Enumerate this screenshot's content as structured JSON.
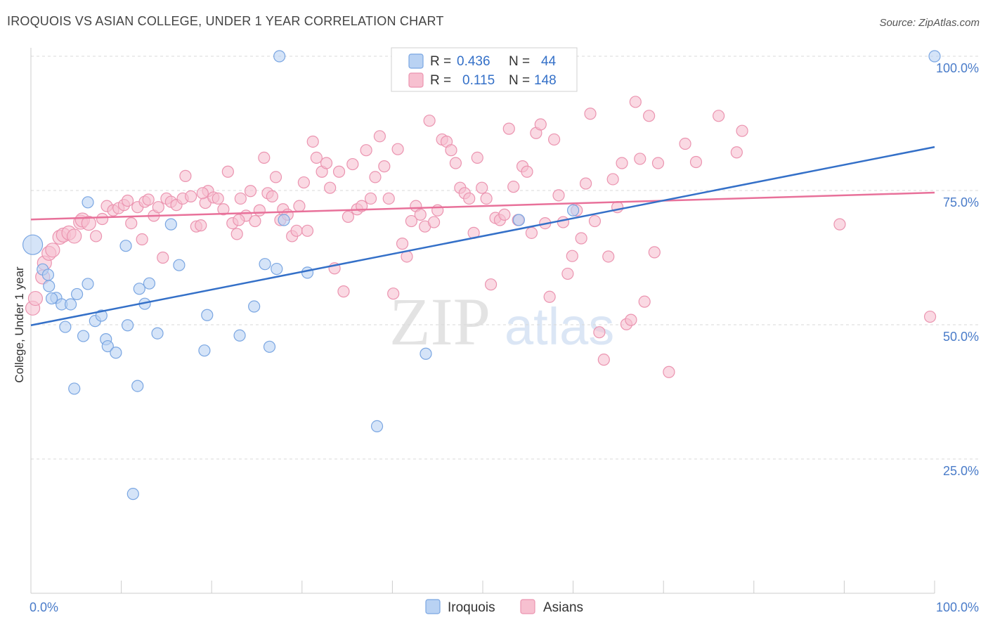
{
  "title": "IROQUOIS VS ASIAN COLLEGE, UNDER 1 YEAR CORRELATION CHART",
  "source": "Source: ZipAtlas.com",
  "watermark": {
    "zip": "ZIP",
    "atlas": "atlas"
  },
  "colors": {
    "iroquois_fill": "#b9d2f3",
    "iroquois_stroke": "#7aa6e2",
    "iroquois_line": "#3470c8",
    "asians_fill": "#f7c0d0",
    "asians_stroke": "#eb94b0",
    "asians_line": "#e8719a",
    "grid": "#d9d9d9",
    "tick_text": "#4a7cc9"
  },
  "legend": {
    "rows": [
      {
        "r_label": "R =",
        "r_value": "0.436",
        "n_label": "N =",
        "n_value": "44"
      },
      {
        "r_label": "R =",
        "r_value": "0.115",
        "n_label": "N =",
        "n_value": "148"
      }
    ]
  },
  "bottom_legend": {
    "iroquois": "Iroquois",
    "asians": "Asians"
  },
  "chart_data": {
    "type": "scatter",
    "title": "IROQUOIS VS ASIAN COLLEGE, UNDER 1 YEAR CORRELATION CHART",
    "xlabel": "",
    "ylabel": "College, Under 1 year",
    "xlim": [
      0,
      100
    ],
    "ylim": [
      0,
      100
    ],
    "x_tick_labels": [
      "0.0%",
      "100.0%"
    ],
    "y_tick_labels": [
      {
        "value": 25,
        "label": "25.0%"
      },
      {
        "value": 50,
        "label": "50.0%"
      },
      {
        "value": 75,
        "label": "75.0%"
      },
      {
        "value": 100,
        "label": "100.0%"
      }
    ],
    "grid": true,
    "series": [
      {
        "name": "Iroquois",
        "R": 0.436,
        "N": 44,
        "trend": {
          "x": [
            0,
            100
          ],
          "y": [
            49.9,
            83.1
          ]
        },
        "points": [
          [
            0.2,
            64.9,
            14
          ],
          [
            1.3,
            60.3,
            8
          ],
          [
            2.0,
            57.2,
            8
          ],
          [
            1.9,
            59.3,
            8
          ],
          [
            2.8,
            55.0,
            8
          ],
          [
            3.4,
            53.8,
            8
          ],
          [
            4.4,
            53.8,
            8
          ],
          [
            3.8,
            49.6,
            8
          ],
          [
            5.1,
            55.7,
            8
          ],
          [
            5.8,
            47.9,
            8
          ],
          [
            6.3,
            57.6,
            8
          ],
          [
            7.1,
            50.7,
            8
          ],
          [
            7.8,
            51.7,
            8
          ],
          [
            8.3,
            47.3,
            8
          ],
          [
            8.5,
            46.0,
            8
          ],
          [
            9.4,
            44.8,
            8
          ],
          [
            10.5,
            64.7,
            8
          ],
          [
            10.7,
            49.9,
            8
          ],
          [
            11.8,
            38.6,
            8
          ],
          [
            12.0,
            56.7,
            8
          ],
          [
            12.6,
            53.9,
            8
          ],
          [
            13.1,
            57.7,
            8
          ],
          [
            14.0,
            48.4,
            8
          ],
          [
            15.5,
            68.7,
            8
          ],
          [
            16.4,
            61.1,
            8
          ],
          [
            19.2,
            45.2,
            8
          ],
          [
            19.5,
            51.8,
            8
          ],
          [
            23.1,
            48.0,
            8
          ],
          [
            24.7,
            53.4,
            8
          ],
          [
            25.9,
            61.3,
            8
          ],
          [
            26.4,
            45.9,
            8
          ],
          [
            27.2,
            60.4,
            8
          ],
          [
            28.0,
            69.5,
            8
          ],
          [
            30.6,
            59.7,
            8
          ],
          [
            38.3,
            31.1,
            8
          ],
          [
            43.7,
            44.6,
            8
          ],
          [
            54.0,
            69.5,
            8
          ],
          [
            60.0,
            71.3,
            8
          ],
          [
            6.3,
            72.8,
            8
          ],
          [
            4.8,
            38.1,
            8
          ],
          [
            11.3,
            18.5,
            8
          ],
          [
            27.5,
            100.0,
            8
          ],
          [
            100.0,
            100.0,
            8
          ],
          [
            2.3,
            54.9,
            8
          ]
        ]
      },
      {
        "name": "Asians",
        "R": 0.115,
        "N": 148,
        "trend": {
          "x": [
            0,
            100
          ],
          "y": [
            69.6,
            74.6
          ]
        },
        "points": [
          [
            0.2,
            53.1,
            10
          ],
          [
            0.5,
            54.9,
            10
          ],
          [
            1.3,
            58.9,
            10
          ],
          [
            1.5,
            61.5,
            10
          ],
          [
            2.0,
            63.3,
            10
          ],
          [
            2.4,
            63.9,
            10
          ],
          [
            3.2,
            66.3,
            10
          ],
          [
            3.6,
            66.7,
            10
          ],
          [
            4.2,
            67.1,
            10
          ],
          [
            4.8,
            66.5,
            10
          ],
          [
            5.5,
            69.1,
            10
          ],
          [
            5.7,
            69.5,
            10
          ],
          [
            6.4,
            68.9,
            10
          ],
          [
            7.2,
            66.5,
            8
          ],
          [
            7.9,
            69.7,
            8
          ],
          [
            8.4,
            72.1,
            8
          ],
          [
            9.1,
            71.3,
            8
          ],
          [
            9.7,
            71.7,
            8
          ],
          [
            10.3,
            72.3,
            8
          ],
          [
            10.7,
            73.1,
            8
          ],
          [
            11.1,
            68.9,
            8
          ],
          [
            11.8,
            71.9,
            8
          ],
          [
            12.3,
            65.9,
            8
          ],
          [
            12.6,
            72.9,
            8
          ],
          [
            13.0,
            73.3,
            8
          ],
          [
            13.6,
            70.3,
            8
          ],
          [
            14.1,
            71.9,
            8
          ],
          [
            14.6,
            62.5,
            8
          ],
          [
            15.0,
            73.5,
            8
          ],
          [
            15.5,
            72.9,
            8
          ],
          [
            16.1,
            72.3,
            8
          ],
          [
            16.8,
            73.5,
            8
          ],
          [
            17.1,
            77.7,
            8
          ],
          [
            17.7,
            73.9,
            8
          ],
          [
            18.3,
            68.3,
            8
          ],
          [
            18.8,
            68.5,
            8
          ],
          [
            19.3,
            72.7,
            8
          ],
          [
            19.6,
            74.9,
            8
          ],
          [
            20.2,
            73.7,
            8
          ],
          [
            20.7,
            73.5,
            8
          ],
          [
            21.3,
            71.5,
            8
          ],
          [
            21.8,
            78.5,
            8
          ],
          [
            22.3,
            68.9,
            8
          ],
          [
            22.8,
            66.9,
            8
          ],
          [
            23.2,
            73.5,
            8
          ],
          [
            23.8,
            70.3,
            8
          ],
          [
            24.3,
            74.9,
            8
          ],
          [
            24.8,
            69.3,
            8
          ],
          [
            25.3,
            71.3,
            8
          ],
          [
            25.8,
            81.1,
            8
          ],
          [
            26.2,
            74.5,
            8
          ],
          [
            26.7,
            73.9,
            8
          ],
          [
            27.1,
            77.5,
            8
          ],
          [
            27.6,
            69.5,
            8
          ],
          [
            27.9,
            71.5,
            8
          ],
          [
            28.4,
            70.5,
            8
          ],
          [
            28.9,
            66.5,
            8
          ],
          [
            29.4,
            67.5,
            8
          ],
          [
            29.7,
            72.1,
            8
          ],
          [
            30.2,
            76.5,
            8
          ],
          [
            30.6,
            67.5,
            8
          ],
          [
            31.2,
            84.1,
            8
          ],
          [
            31.6,
            81.1,
            8
          ],
          [
            32.2,
            78.5,
            8
          ],
          [
            32.7,
            80.1,
            8
          ],
          [
            33.1,
            75.5,
            8
          ],
          [
            33.6,
            60.5,
            8
          ],
          [
            34.1,
            78.5,
            8
          ],
          [
            34.6,
            56.2,
            8
          ],
          [
            35.1,
            70.1,
            8
          ],
          [
            35.6,
            79.9,
            8
          ],
          [
            36.1,
            71.5,
            8
          ],
          [
            36.6,
            72.1,
            8
          ],
          [
            37.1,
            82.5,
            8
          ],
          [
            37.6,
            73.5,
            8
          ],
          [
            38.1,
            77.5,
            8
          ],
          [
            38.6,
            85.1,
            8
          ],
          [
            39.1,
            79.5,
            8
          ],
          [
            39.6,
            73.5,
            8
          ],
          [
            40.1,
            55.8,
            8
          ],
          [
            40.6,
            82.7,
            8
          ],
          [
            41.1,
            65.1,
            8
          ],
          [
            41.6,
            62.7,
            8
          ],
          [
            42.1,
            69.3,
            8
          ],
          [
            42.6,
            72.1,
            8
          ],
          [
            43.1,
            70.5,
            8
          ],
          [
            43.6,
            68.3,
            8
          ],
          [
            44.1,
            88.0,
            8
          ],
          [
            44.6,
            69.1,
            8
          ],
          [
            45.0,
            71.3,
            8
          ],
          [
            45.5,
            84.5,
            8
          ],
          [
            46.0,
            84.1,
            8
          ],
          [
            46.5,
            82.5,
            8
          ],
          [
            47.0,
            80.1,
            8
          ],
          [
            47.5,
            75.5,
            8
          ],
          [
            48.0,
            74.5,
            8
          ],
          [
            48.5,
            73.5,
            8
          ],
          [
            49.0,
            67.1,
            8
          ],
          [
            49.4,
            81.1,
            8
          ],
          [
            49.9,
            75.5,
            8
          ],
          [
            50.4,
            73.5,
            8
          ],
          [
            50.9,
            57.5,
            8
          ],
          [
            51.4,
            69.9,
            8
          ],
          [
            51.9,
            69.5,
            8
          ],
          [
            52.4,
            70.5,
            8
          ],
          [
            52.9,
            86.5,
            8
          ],
          [
            53.4,
            75.7,
            8
          ],
          [
            53.9,
            69.5,
            8
          ],
          [
            54.4,
            79.5,
            8
          ],
          [
            54.9,
            78.5,
            8
          ],
          [
            55.4,
            67.1,
            8
          ],
          [
            55.9,
            85.7,
            8
          ],
          [
            56.4,
            87.3,
            8
          ],
          [
            56.9,
            68.9,
            8
          ],
          [
            57.4,
            55.2,
            8
          ],
          [
            57.9,
            84.5,
            8
          ],
          [
            58.4,
            74.1,
            8
          ],
          [
            58.9,
            69.1,
            8
          ],
          [
            59.4,
            59.5,
            8
          ],
          [
            59.9,
            62.8,
            8
          ],
          [
            60.4,
            71.3,
            8
          ],
          [
            60.9,
            66.1,
            8
          ],
          [
            61.4,
            76.3,
            8
          ],
          [
            61.9,
            89.3,
            8
          ],
          [
            62.4,
            69.3,
            8
          ],
          [
            62.9,
            48.6,
            8
          ],
          [
            63.4,
            43.5,
            8
          ],
          [
            63.9,
            62.7,
            8
          ],
          [
            64.4,
            77.1,
            8
          ],
          [
            64.9,
            71.9,
            8
          ],
          [
            65.4,
            80.1,
            8
          ],
          [
            65.9,
            50.1,
            8
          ],
          [
            66.4,
            50.9,
            8
          ],
          [
            66.9,
            91.5,
            8
          ],
          [
            67.4,
            80.9,
            8
          ],
          [
            67.9,
            54.3,
            8
          ],
          [
            68.4,
            88.9,
            8
          ],
          [
            69.0,
            63.5,
            8
          ],
          [
            69.4,
            80.1,
            8
          ],
          [
            70.6,
            41.2,
            8
          ],
          [
            72.4,
            83.7,
            8
          ],
          [
            73.6,
            80.3,
            8
          ],
          [
            76.1,
            88.9,
            8
          ],
          [
            78.1,
            82.1,
            8
          ],
          [
            78.7,
            86.1,
            8
          ],
          [
            89.5,
            68.7,
            8
          ],
          [
            99.5,
            51.5,
            8
          ],
          [
            23.0,
            69.5,
            8
          ],
          [
            19.0,
            74.5,
            8
          ]
        ]
      }
    ]
  }
}
